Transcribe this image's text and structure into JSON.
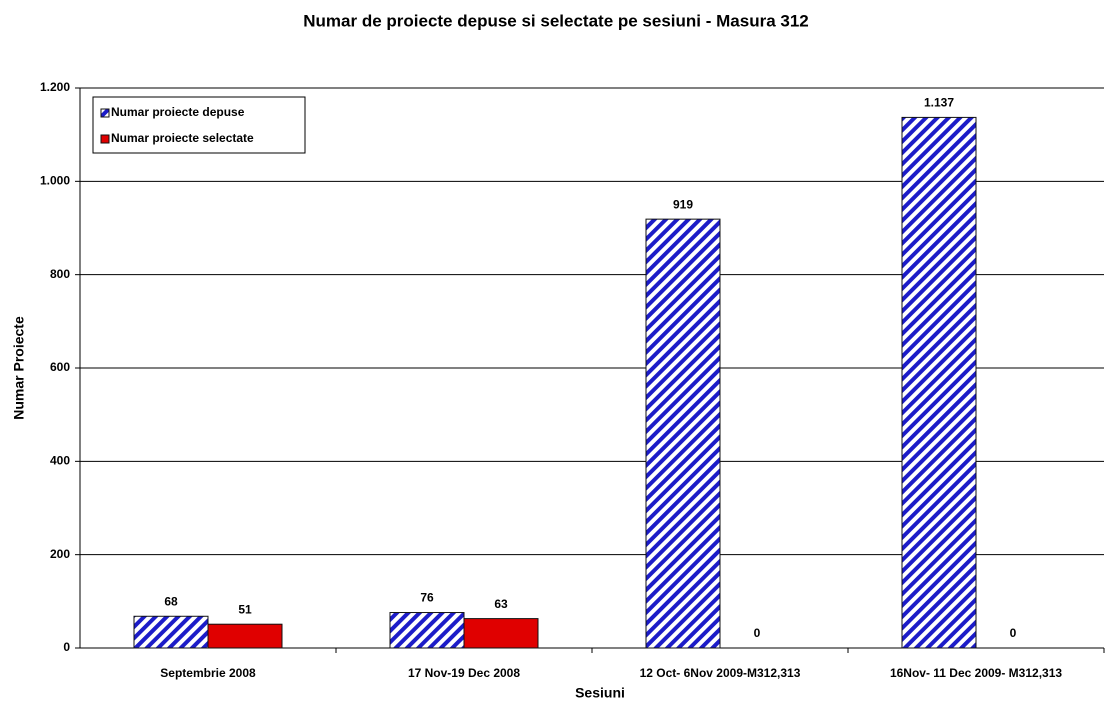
{
  "chart_data": {
    "type": "bar",
    "title": "Numar de proiecte depuse si selectate pe sesiuni - Masura 312",
    "x_label": "Sesiuni",
    "y_label": "Numar Proiecte",
    "categories": [
      "Septembrie 2008",
      "17 Nov-19 Dec 2008",
      "12 Oct- 6Nov 2009-M312,313",
      "16Nov- 11 Dec 2009- M312,313"
    ],
    "series": [
      {
        "name": "Numar proiecte depuse",
        "color": "#1c1cc8",
        "hatch": true,
        "values": [
          68,
          76,
          919,
          1137
        ],
        "value_labels": [
          "68",
          "76",
          "919",
          "1.137"
        ]
      },
      {
        "name": "Numar proiecte selectate",
        "color": "#e00000",
        "hatch": false,
        "values": [
          51,
          63,
          0,
          0
        ]
      }
    ],
    "ylim": [
      0,
      1200
    ],
    "yticks": [
      0,
      200,
      400,
      600,
      800,
      {
        "value": 1000,
        "label": "1.000"
      },
      {
        "value": 1200,
        "label": "1.200"
      }
    ],
    "grid": true,
    "legend": "top-left"
  }
}
